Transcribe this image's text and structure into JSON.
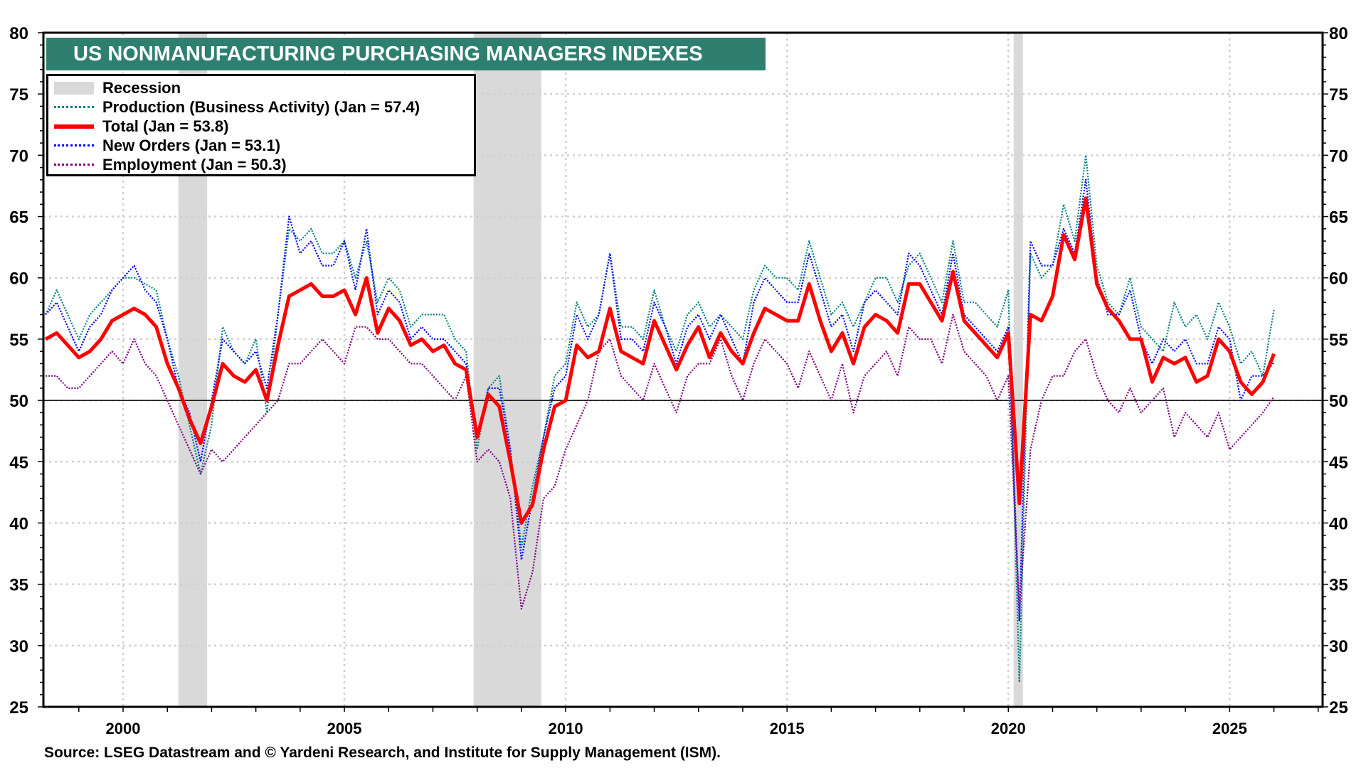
{
  "chart_data": {
    "type": "line",
    "title": "US NONMANUFACTURING PURCHASING MANAGERS INDEXES",
    "source": "Source: LSEG Datastream and © Yardeni Research, and Institute for Supply Management (ISM).",
    "xlabel": "",
    "ylabel": "",
    "xlim": [
      1998.2,
      2027.1
    ],
    "ylim": [
      25,
      80
    ],
    "x_ticks": [
      "2000",
      "2005",
      "2010",
      "2015",
      "2020",
      "2025"
    ],
    "y_ticks": [
      "25",
      "30",
      "35",
      "40",
      "45",
      "50",
      "55",
      "60",
      "65",
      "70",
      "75",
      "80"
    ],
    "grid": true,
    "reference_line": 50,
    "legend_position": "top-left",
    "x_start": 1998.25,
    "x_step": 0.25,
    "recessions": [
      [
        2001.25,
        2001.9
      ],
      [
        2007.92,
        2009.45
      ],
      [
        2020.12,
        2020.33
      ]
    ],
    "legend": {
      "recession": "Recession",
      "production": "Production  (Business Activity) (Jan = 57.4)",
      "total": "Total  (Jan = 53.8)",
      "new_orders": "New Orders (Jan = 53.1)",
      "employment": "Employment  (Jan = 50.3)"
    },
    "series": [
      {
        "name": "Production (Business Activity)",
        "key": "production",
        "color": "#008080",
        "style": "dotted",
        "values": [
          57,
          59,
          57,
          55,
          57,
          58,
          59,
          60,
          60,
          59.5,
          59,
          55,
          52,
          48,
          44,
          48,
          56,
          54,
          53,
          55,
          49,
          57,
          64,
          63,
          64,
          62,
          62,
          63,
          60,
          63,
          58,
          60,
          59,
          56,
          57,
          57,
          57,
          55,
          54,
          46,
          51,
          52,
          46,
          38,
          43,
          47,
          52,
          53,
          58,
          56,
          57,
          62,
          56,
          56,
          55,
          59,
          56,
          54,
          57,
          58,
          56,
          57,
          56,
          55,
          59,
          61,
          60,
          60,
          59,
          63,
          60,
          57,
          58,
          56,
          58,
          60,
          60,
          58,
          61,
          62,
          60,
          58,
          63,
          58,
          58,
          57,
          56,
          59,
          27,
          62,
          60,
          61,
          66,
          63,
          70,
          61,
          58,
          57,
          60,
          56,
          55,
          54,
          58,
          56,
          57,
          55,
          58,
          56,
          53,
          54,
          52,
          57.4
        ]
      },
      {
        "name": "New Orders",
        "key": "new_orders",
        "color": "#0000ff",
        "style": "dotted",
        "values": [
          57,
          58,
          56,
          54,
          56,
          57,
          59,
          60,
          61,
          59,
          58,
          55,
          51,
          49,
          45,
          50,
          55,
          54,
          53,
          54,
          51,
          57,
          65,
          62,
          63,
          61,
          61,
          63,
          59,
          64,
          57,
          59,
          58,
          55,
          56,
          55,
          55,
          54,
          53,
          47,
          51,
          51,
          46,
          37,
          42,
          47,
          51,
          52,
          57,
          55,
          57,
          62,
          55,
          55,
          54,
          58,
          56,
          53,
          56,
          57,
          55,
          57,
          55,
          53,
          58,
          60,
          59,
          58,
          58,
          62,
          59,
          56,
          57,
          54,
          58,
          59,
          58,
          57,
          62,
          61,
          59,
          57,
          62,
          57,
          56,
          55,
          54,
          56,
          32,
          63,
          61,
          61,
          64,
          62,
          68,
          60,
          57,
          57,
          59,
          55,
          53,
          55,
          54,
          55,
          53,
          53,
          56,
          55,
          50,
          52,
          52,
          53.1
        ]
      },
      {
        "name": "Employment",
        "key": "employment",
        "color": "#800080",
        "style": "dotted",
        "values": [
          52,
          52,
          51,
          51,
          52,
          53,
          54,
          53,
          55,
          53,
          52,
          50,
          48,
          46,
          44,
          46,
          45,
          46,
          47,
          48,
          49,
          50,
          53,
          53,
          54,
          55,
          54,
          53,
          56,
          56,
          55,
          55,
          54,
          53,
          53,
          52,
          51,
          50,
          52,
          45,
          46,
          45,
          42,
          33,
          36,
          42,
          43,
          46,
          48,
          50,
          54,
          55,
          52,
          51,
          50,
          53,
          51,
          49,
          52,
          53,
          53,
          55,
          52,
          50,
          53,
          55,
          54,
          53,
          51,
          54,
          52,
          50,
          53,
          49,
          52,
          53,
          54,
          52,
          56,
          55,
          55,
          53,
          57,
          54,
          53,
          52,
          50,
          52,
          33,
          46,
          50,
          52,
          52,
          54,
          55,
          52,
          50,
          49,
          51,
          49,
          50,
          51,
          47,
          49,
          48,
          47,
          49,
          46,
          47,
          48,
          49,
          50.3
        ]
      },
      {
        "name": "Total",
        "key": "total",
        "color": "#ff0000",
        "style": "solid",
        "values": [
          55,
          55.5,
          54.5,
          53.5,
          54,
          55,
          56.5,
          57,
          57.5,
          57,
          56,
          53,
          51,
          48.5,
          46.5,
          49.5,
          53,
          52,
          51.5,
          52.5,
          50,
          54.5,
          58.5,
          59,
          59.5,
          58.5,
          58.5,
          59,
          57,
          60,
          55.5,
          57.5,
          56.5,
          54.5,
          55,
          54,
          54.5,
          53,
          52.5,
          47,
          50.5,
          49.5,
          45,
          40,
          41.5,
          46,
          49.5,
          50,
          54.5,
          53.5,
          54,
          57.5,
          54,
          53.5,
          53,
          56.5,
          54.5,
          52.5,
          54.5,
          56,
          53.5,
          55.5,
          54,
          53,
          55.5,
          57.5,
          57,
          56.5,
          56.5,
          59.5,
          56.5,
          54,
          55.5,
          53,
          56,
          57,
          56.5,
          55.5,
          59.5,
          59.5,
          58,
          56.5,
          60.5,
          56.5,
          55.5,
          54.5,
          53.5,
          55.5,
          41.6,
          57,
          56.5,
          58.5,
          63.5,
          61.5,
          66.5,
          59.5,
          57.5,
          56.5,
          55,
          55,
          51.5,
          53.5,
          53,
          53.5,
          51.5,
          52,
          55,
          54,
          51.5,
          50.5,
          51.5,
          53.8
        ]
      }
    ]
  }
}
